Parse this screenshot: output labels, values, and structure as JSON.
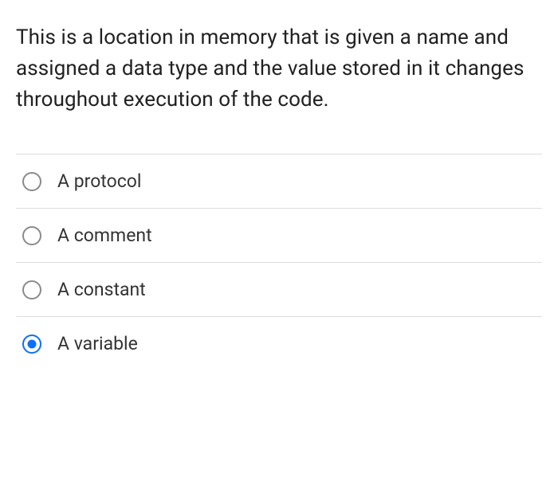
{
  "question": {
    "text": "This is a location in memory that is given a name and assigned a data type and the value stored in it changes throughout execution of the code."
  },
  "options": [
    {
      "label": "A protocol",
      "selected": false
    },
    {
      "label": "A comment",
      "selected": false
    },
    {
      "label": "A constant",
      "selected": false
    },
    {
      "label": "A variable",
      "selected": true
    }
  ],
  "colors": {
    "text_primary": "#212121",
    "text_option": "#333333",
    "radio_unselected_border": "#8a8a8a",
    "radio_selected": "#0d6efd",
    "divider": "#dddddd",
    "background": "#ffffff"
  },
  "typography": {
    "question_fontsize": 26,
    "option_fontsize": 23,
    "font_family": "sans-serif"
  }
}
